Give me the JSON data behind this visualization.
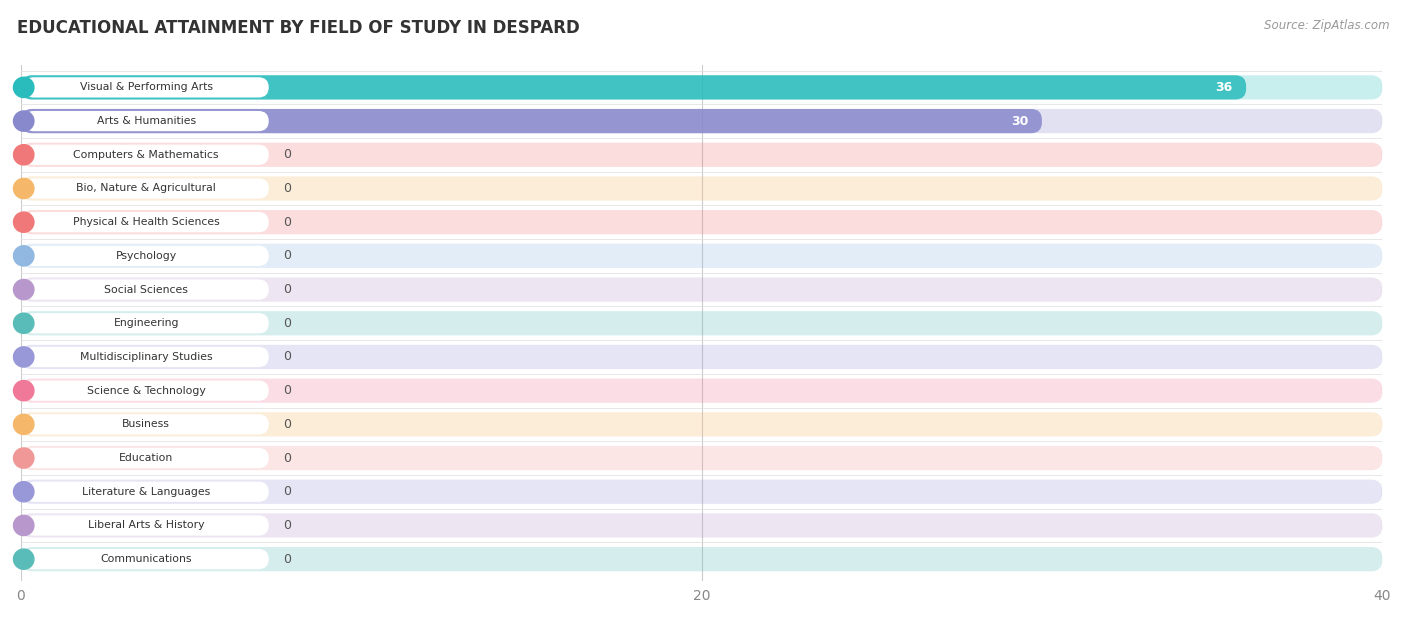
{
  "title": "EDUCATIONAL ATTAINMENT BY FIELD OF STUDY IN DESPARD",
  "source": "Source: ZipAtlas.com",
  "categories": [
    "Visual & Performing Arts",
    "Arts & Humanities",
    "Computers & Mathematics",
    "Bio, Nature & Agricultural",
    "Physical & Health Sciences",
    "Psychology",
    "Social Sciences",
    "Engineering",
    "Multidisciplinary Studies",
    "Science & Technology",
    "Business",
    "Education",
    "Literature & Languages",
    "Liberal Arts & History",
    "Communications"
  ],
  "values": [
    36,
    30,
    0,
    0,
    0,
    0,
    0,
    0,
    0,
    0,
    0,
    0,
    0,
    0,
    0
  ],
  "bar_colors": [
    "#2abcbc",
    "#8888cc",
    "#f07878",
    "#f5b86a",
    "#f07878",
    "#90b8e0",
    "#b898cc",
    "#5abcb8",
    "#9898d8",
    "#f07898",
    "#f5b86a",
    "#f09898",
    "#9898d8",
    "#b898cc",
    "#5abcb8"
  ],
  "xlim": [
    0,
    40
  ],
  "xticks": [
    0,
    20,
    40
  ],
  "bg_color": "#ffffff",
  "row_bg_color": "#f0f0f5",
  "title_fontsize": 12,
  "source_fontsize": 8.5,
  "bar_alpha": 0.85,
  "row_alpha": 0.25
}
